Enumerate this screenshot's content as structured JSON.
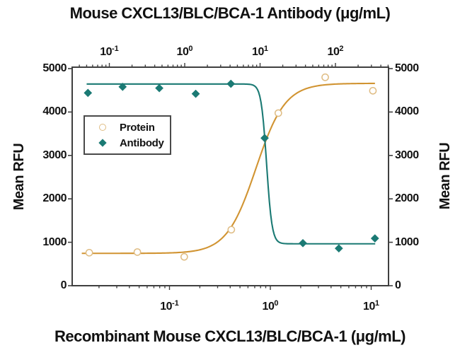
{
  "title": "Mouse CXCL13/BLC/BCA-1 Antibody (μg/mL)",
  "xlabel_bottom": "Recombinant Mouse CXCL13/BLC/BCA-1 (μg/mL)",
  "ylabel_left": "Mean RFU",
  "ylabel_right": "Mean RFU",
  "legend": {
    "items": [
      {
        "label": "Protein",
        "marker": "open-circle-icon",
        "color": "#DFBC83"
      },
      {
        "label": "Antibody",
        "marker": "filled-diamond-icon",
        "color": "#1B7A74"
      }
    ]
  },
  "colors": {
    "protein_marker": "#DFBC83",
    "protein_curve": "#D19432",
    "antibody": "#1B7A74",
    "axis": "#3f3f3f",
    "text": "#111111",
    "background": "#ffffff"
  },
  "chart_data": {
    "type": "scatter",
    "subtype": "dose-response curves with fitted 4PL lines, dual independent log x-axes",
    "title": "Mouse CXCL13/BLC/BCA-1 Antibody (μg/mL)",
    "xlabel": "Recombinant Mouse CXCL13/BLC/BCA-1 (μg/mL)",
    "ylabel": "Mean RFU",
    "grid": false,
    "legend_position": "upper-left-inside",
    "y_axis": {
      "range": [
        0,
        5000
      ],
      "ticks": [
        0,
        1000,
        2000,
        3000,
        4000,
        5000
      ],
      "tick_labels": [
        "0",
        "1000",
        "2000",
        "3000",
        "4000",
        "5000"
      ],
      "label_both_sides": true
    },
    "x_axis_top": {
      "label": "Mouse CXCL13/BLC/BCA-1 Antibody (μg/mL)",
      "scale": "log",
      "range": [
        0.032,
        506
      ],
      "tick_base": "10",
      "tick_exponents": [
        -1,
        0,
        1,
        2
      ]
    },
    "x_axis_bottom": {
      "label": "Recombinant Mouse CXCL13/BLC/BCA-1 (μg/mL)",
      "scale": "log",
      "range": [
        0.011,
        14.9
      ],
      "tick_base": "10",
      "tick_exponents": [
        -1,
        0,
        1
      ]
    },
    "series": [
      {
        "name": "Protein",
        "axis": "bottom",
        "marker": "open-circle",
        "marker_color": "#DFBC83",
        "line_color": "#D19432",
        "points": [
          [
            0.016,
            760
          ],
          [
            0.048,
            775
          ],
          [
            0.14,
            665
          ],
          [
            0.41,
            1290
          ],
          [
            1.2,
            3975
          ],
          [
            3.5,
            4800
          ],
          [
            10.4,
            4490
          ]
        ],
        "fit": {
          "bottom": 745,
          "top": 4660,
          "ec50": 0.72,
          "hill": 3,
          "direction": "increasing",
          "x_start": 0.0135,
          "x_end": 10.9
        }
      },
      {
        "name": "Antibody",
        "axis": "top",
        "marker": "filled-diamond",
        "marker_color": "#1B7A74",
        "line_color": "#1B7A74",
        "points": [
          [
            0.052,
            4440
          ],
          [
            0.15,
            4580
          ],
          [
            0.46,
            4550
          ],
          [
            1.4,
            4420
          ],
          [
            4.1,
            4650
          ],
          [
            11.5,
            3400
          ],
          [
            37,
            980
          ],
          [
            111,
            860
          ],
          [
            334,
            1090
          ]
        ],
        "fit": {
          "bottom": 965,
          "top": 4645,
          "ec50": 12.2,
          "hill": 12,
          "direction": "decreasing",
          "x_start": 0.05,
          "x_end": 337
        }
      }
    ]
  }
}
